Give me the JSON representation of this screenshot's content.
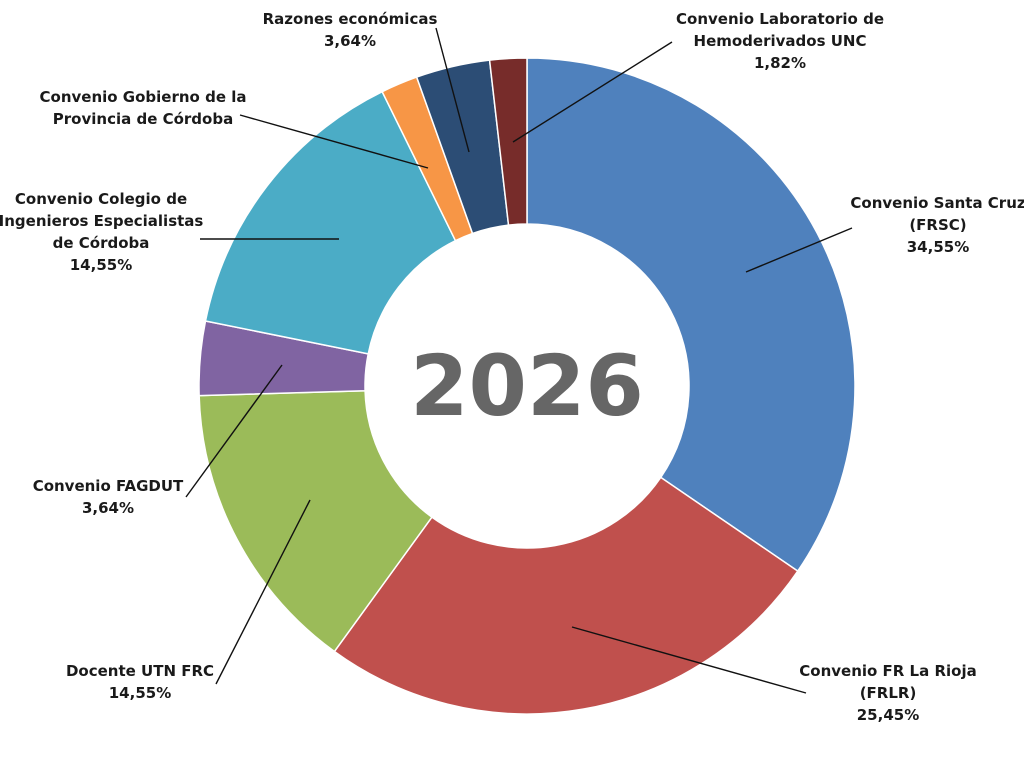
{
  "center_label": "2026",
  "chart_data": {
    "type": "pie",
    "donut": true,
    "start_angle_deg": 0,
    "direction": "clockwise",
    "slices": [
      {
        "key": "santa-cruz",
        "label_lines": [
          "Convenio Santa Cruz",
          "(FRSC)",
          "34,55%"
        ],
        "value": 34.55,
        "color": "#4F81BD"
      },
      {
        "key": "la-rioja",
        "label_lines": [
          "Convenio FR La Rioja",
          "(FRLR)",
          "25,45%"
        ],
        "value": 25.45,
        "color": "#C0504D"
      },
      {
        "key": "docente-utn",
        "label_lines": [
          "Docente UTN FRC",
          "14,55%"
        ],
        "value": 14.55,
        "color": "#9BBB59"
      },
      {
        "key": "fagdut",
        "label_lines": [
          "Convenio FAGDUT",
          "3,64%"
        ],
        "value": 3.64,
        "color": "#8064A2"
      },
      {
        "key": "colegio-ingenieros",
        "label_lines": [
          "Convenio Colegio de",
          "Ingenieros Especialistas",
          "de Córdoba",
          "14,55%"
        ],
        "value": 14.55,
        "color": "#4BACC6"
      },
      {
        "key": "gobierno-cordoba",
        "label_lines": [
          "Convenio Gobierno de la",
          "Provincia de Córdoba"
        ],
        "value": 1.82,
        "color": "#F79646"
      },
      {
        "key": "razones-economicas",
        "label_lines": [
          "Razones económicas",
          "3,64%"
        ],
        "value": 3.64,
        "color": "#2C4D75"
      },
      {
        "key": "hemoderivados",
        "label_lines": [
          "Convenio Laboratorio de",
          "Hemoderivados UNC",
          "1,82%"
        ],
        "value": 1.82,
        "color": "#772C2A"
      }
    ]
  }
}
